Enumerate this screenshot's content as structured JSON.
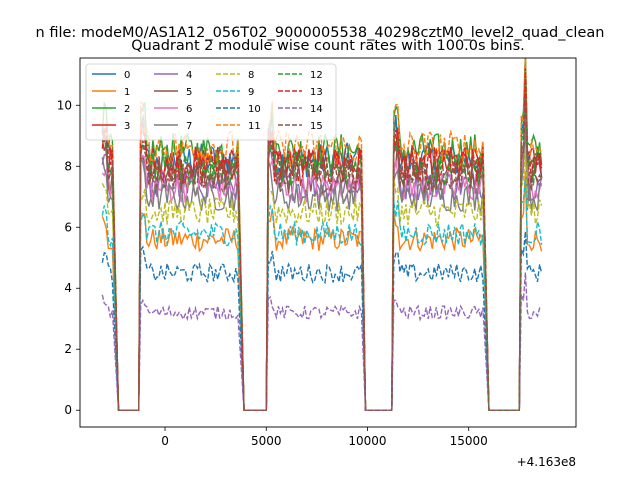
{
  "figure": {
    "suptitle": "n file: modeM0/AS1A12_056T02_9000005538_40298cztM0_level2_quad_clean",
    "title": "Quadrant 2 module wise count rates with 100.0s bins.",
    "offset_label": "+4.163e8"
  },
  "chart_data": {
    "type": "line",
    "title": "Quadrant 2 module wise count rates with 100.0s bins.",
    "xlabel": "",
    "ylabel": "",
    "x_offset": 416300000,
    "xlim": [
      -4200,
      20300
    ],
    "ylim": [
      -0.55,
      11.55
    ],
    "xticks": [
      0,
      5000,
      10000,
      15000
    ],
    "yticks": [
      0,
      2,
      4,
      6,
      8,
      10
    ],
    "grid": false,
    "legend": {
      "placement": "upper-left",
      "columns": 4
    },
    "colors": [
      "#1f77b4",
      "#ff7f0e",
      "#2ca02c",
      "#d62728",
      "#9467bd",
      "#8c564b",
      "#e377c2",
      "#7f7f7f",
      "#bcbd22",
      "#17becf",
      "#1f77b4",
      "#ff7f0e",
      "#2ca02c",
      "#d62728",
      "#9467bd",
      "#8c564b"
    ],
    "linestyles": [
      "solid",
      "solid",
      "solid",
      "solid",
      "solid",
      "solid",
      "solid",
      "solid",
      "dashed",
      "dashed",
      "dashed",
      "dashed",
      "dashed",
      "dashed",
      "dashed",
      "dashed"
    ],
    "on_segments": [
      [
        -3100,
        -2600
      ],
      [
        -1200,
        3600
      ],
      [
        5100,
        9700
      ],
      [
        11300,
        15700
      ],
      [
        17600,
        18600
      ]
    ],
    "off_segments": [
      [
        -2300,
        -1300
      ],
      [
        3900,
        5000
      ],
      [
        9900,
        11200
      ],
      [
        16000,
        17500
      ]
    ],
    "series": [
      {
        "name": "0",
        "level": 8.2
      },
      {
        "name": "1",
        "level": 5.6
      },
      {
        "name": "2",
        "level": 8.5
      },
      {
        "name": "3",
        "level": 8.1
      },
      {
        "name": "4",
        "level": 7.4
      },
      {
        "name": "5",
        "level": 7.6
      },
      {
        "name": "6",
        "level": 7.3
      },
      {
        "name": "7",
        "level": 7.0
      },
      {
        "name": "8",
        "level": 6.5
      },
      {
        "name": "9",
        "level": 5.8
      },
      {
        "name": "10",
        "level": 4.5
      },
      {
        "name": "11",
        "level": 8.6
      },
      {
        "name": "12",
        "level": 7.9
      },
      {
        "name": "13",
        "level": 8.0
      },
      {
        "name": "14",
        "level": 3.2
      },
      {
        "name": "15",
        "level": 7.7
      }
    ]
  }
}
